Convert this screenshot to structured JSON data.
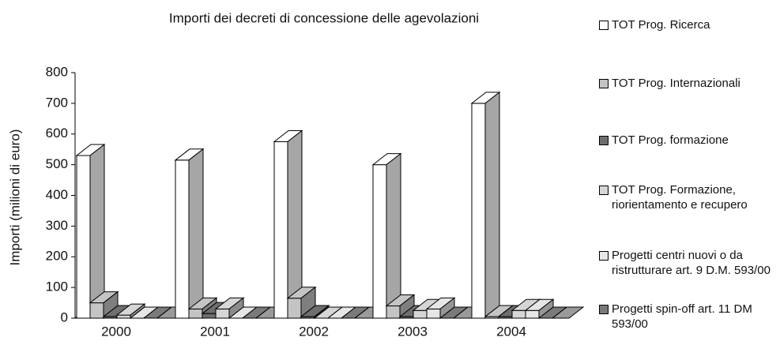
{
  "chart_data": {
    "type": "bar3d",
    "title": "Importi dei decreti di concessione delle agevolazioni",
    "y_label": "Importi (milioni di euro)",
    "categories": [
      "2000",
      "2001",
      "2002",
      "2003",
      "2004"
    ],
    "series": [
      {
        "name": "TOT Prog. Ricerca",
        "color": "#ffffff",
        "values": [
          530,
          515,
          575,
          500,
          700
        ]
      },
      {
        "name": "TOT Prog. Internazionali",
        "color": "#c4c4c4",
        "values": [
          50,
          30,
          65,
          40,
          5
        ]
      },
      {
        "name": "TOT Prog. formazione",
        "color": "#6e6e6e",
        "values": [
          5,
          15,
          5,
          5,
          5
        ]
      },
      {
        "name": "TOT Prog. Formazione, riorientamento e recupero",
        "color": "#d6d6d6",
        "values": [
          10,
          30,
          0,
          25,
          25
        ]
      },
      {
        "name": "Progetti centri nuovi o da ristrutturare art. 9 D.M. 593/00",
        "color": "#e6e6e6",
        "values": [
          0,
          0,
          0,
          30,
          25
        ]
      },
      {
        "name": "Progetti spin-off art. 11 DM 593/00",
        "color": "#7a7a7a",
        "values": [
          0,
          0,
          0,
          0,
          0
        ]
      }
    ],
    "ylim": [
      0,
      800
    ],
    "yticks": [
      0,
      100,
      200,
      300,
      400,
      500,
      600,
      700,
      800
    ]
  }
}
